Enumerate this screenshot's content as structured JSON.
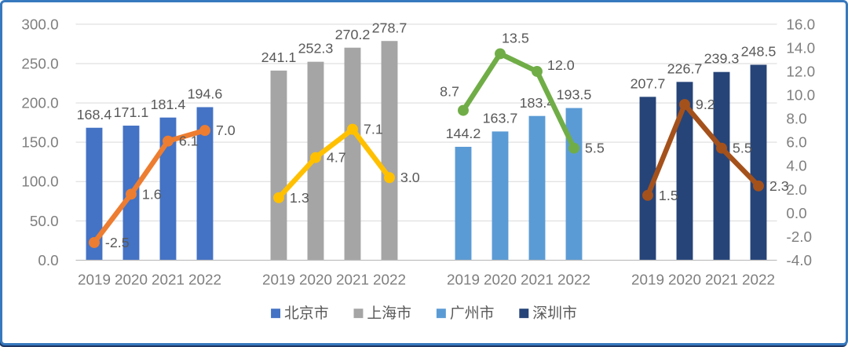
{
  "window": {
    "background": "#FFFFFF",
    "frame_border_color": "#3779BE",
    "frame_shadow_color": "#1F3864"
  },
  "chart_data": {
    "type": "bar",
    "subtype": "clustered-bars-with-line-overlay",
    "title": "",
    "xlabel": "",
    "ylabel": "",
    "grid": true,
    "categories": [
      "2019",
      "2020",
      "2021",
      "2022"
    ],
    "groups": [
      {
        "name": "北京市",
        "bar_color": "#4472C4",
        "line_color": "#ED7D31",
        "bar_values": [
          168.4,
          171.1,
          181.4,
          194.6
        ],
        "line_values": [
          -2.5,
          1.6,
          6.1,
          7.0
        ],
        "line_label_positions": [
          "right",
          "right",
          "right",
          "right"
        ]
      },
      {
        "name": "上海市",
        "bar_color": "#A5A5A5",
        "line_color": "#FFC000",
        "bar_values": [
          241.1,
          252.3,
          270.2,
          278.7
        ],
        "line_values": [
          1.3,
          4.7,
          7.1,
          3.0
        ],
        "line_label_positions": [
          "right",
          "right",
          "right",
          "right"
        ]
      },
      {
        "name": "广州市",
        "bar_color": "#5B9BD5",
        "line_color": "#70AD47",
        "bar_values": [
          144.2,
          163.7,
          183.4,
          193.5
        ],
        "line_values": [
          8.7,
          13.5,
          12.0,
          5.5
        ],
        "line_label_positions": [
          "above-left",
          "above",
          "right-up",
          "right"
        ]
      },
      {
        "name": "深圳市",
        "bar_color": "#264478",
        "line_color": "#A5511B",
        "bar_values": [
          207.7,
          226.7,
          239.3,
          248.5
        ],
        "line_values": [
          1.5,
          9.2,
          5.5,
          2.3
        ],
        "line_label_positions": [
          "right",
          "right",
          "right",
          "right"
        ]
      }
    ],
    "left_axis": {
      "min": 0,
      "max": 300,
      "step": 50,
      "tick_labels": [
        "300.0",
        "250.0",
        "200.0",
        "150.0",
        "100.0",
        "50.0",
        "0.0"
      ]
    },
    "right_axis": {
      "min": -4,
      "max": 16,
      "step": 2,
      "tick_labels": [
        "16.0",
        "14.0",
        "12.0",
        "10.0",
        "8.0",
        "6.0",
        "4.0",
        "2.0",
        "0.0",
        "-2.0",
        "-4.0"
      ]
    },
    "legend": {
      "position": "bottom",
      "items": [
        {
          "label": "北京市",
          "color": "#4472C4"
        },
        {
          "label": "上海市",
          "color": "#A5A5A5"
        },
        {
          "label": "广州市",
          "color": "#5B9BD5"
        },
        {
          "label": "深圳市",
          "color": "#264478"
        }
      ]
    },
    "style_colors": {
      "gridline": "#D9D9D9",
      "axis_line": "#BFBFBF",
      "tick_text": "#7F7F7F",
      "data_label_text": "#595959",
      "legend_text": "#595959"
    }
  }
}
